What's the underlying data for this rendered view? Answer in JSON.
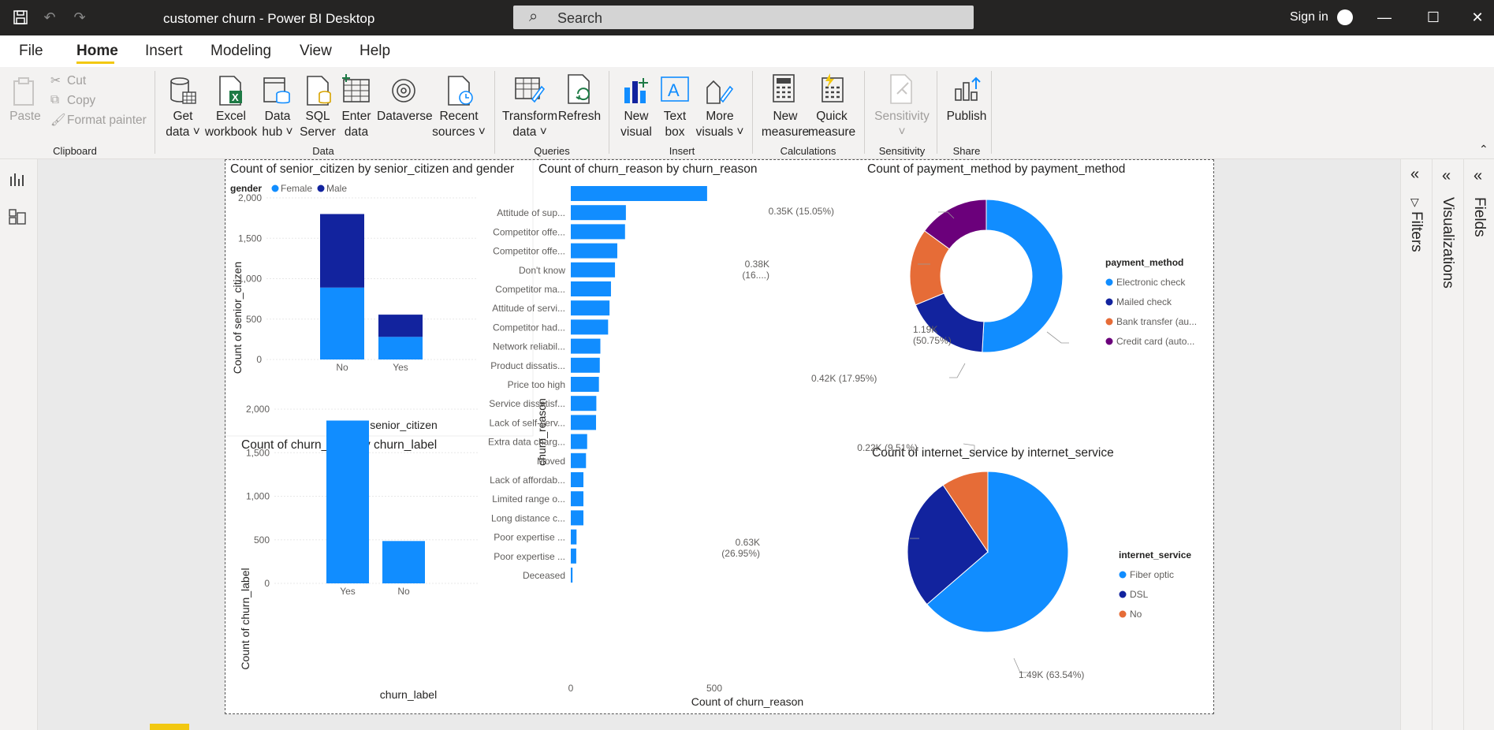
{
  "titlebar": {
    "title": "customer churn - Power BI Desktop",
    "search_label": "Search",
    "sign_in": "Sign in",
    "icons": [
      "save-icon",
      "undo-icon",
      "redo-icon",
      "search-icon",
      "minimize-icon",
      "maximize-icon",
      "close-icon"
    ]
  },
  "menu": {
    "items": [
      "File",
      "Home",
      "Insert",
      "Modeling",
      "View",
      "Help"
    ],
    "active": "Home"
  },
  "ribbon": {
    "clipboard": {
      "paste": "Paste",
      "cut": "Cut",
      "copy": "Copy",
      "format_painter": "Format painter",
      "group": "Clipboard"
    },
    "data": {
      "get_data_1": "Get",
      "get_data_2": "data",
      "excel_1": "Excel",
      "excel_2": "workbook",
      "hub_1": "Data",
      "hub_2": "hub",
      "sql_1": "SQL",
      "sql_2": "Server",
      "enter_1": "Enter",
      "enter_2": "data",
      "dataverse": "Dataverse",
      "recent_1": "Recent",
      "recent_2": "sources",
      "group": "Data"
    },
    "queries": {
      "transform_1": "Transform",
      "transform_2": "data",
      "refresh": "Refresh",
      "group": "Queries"
    },
    "insert": {
      "newvis_1": "New",
      "newvis_2": "visual",
      "textbox_1": "Text",
      "textbox_2": "box",
      "more_1": "More",
      "more_2": "visuals",
      "group": "Insert"
    },
    "calculations": {
      "newm_1": "New",
      "newm_2": "measure",
      "quick_1": "Quick",
      "quick_2": "measure",
      "group": "Calculations"
    },
    "sensitivity": {
      "label": "Sensitivity",
      "group": "Sensitivity"
    },
    "share": {
      "publish": "Publish",
      "group": "Share"
    }
  },
  "panes": {
    "filters": "Filters",
    "visualizations": "Visualizations",
    "fields": "Fields"
  },
  "colors": {
    "blue": "#118dff",
    "navy": "#12239e",
    "orange": "#e66c37",
    "purple": "#6b007b",
    "accent": "#f2c811"
  },
  "chart_data": [
    {
      "type": "bar",
      "title": "Count of senior_citizen by senior_citizen and gender",
      "legend_title": "gender",
      "stacked": true,
      "categories": [
        "No",
        "Yes"
      ],
      "series": [
        {
          "name": "Female",
          "values": [
            890,
            280
          ]
        },
        {
          "name": "Male",
          "values": [
            910,
            275
          ]
        }
      ],
      "xlabel": "senior_citizen",
      "ylabel": "Count of senior_citizen",
      "yticks": [
        "0",
        "500",
        "1,000",
        "1,500",
        "2,000"
      ],
      "ylim": [
        0,
        2000
      ]
    },
    {
      "type": "bar",
      "title": "Count of churn_label by churn_label",
      "categories": [
        "Yes",
        "No"
      ],
      "values": [
        1869,
        486
      ],
      "xlabel": "churn_label",
      "ylabel": "Count of churn_label",
      "yticks": [
        "0",
        "500",
        "1,000",
        "1,500",
        "2,000"
      ],
      "ylim": [
        0,
        2000
      ]
    },
    {
      "type": "bar",
      "orientation": "horizontal",
      "title": "Count of churn_reason by churn_reason",
      "categories": [
        "",
        "Attitude of sup...",
        "Competitor offe...",
        "Competitor offe...",
        "Don't know",
        "Competitor ma...",
        "Attitude of servi...",
        "Competitor had...",
        "Network reliabil...",
        "Product dissatis...",
        "Price too high",
        "Service dissatisf...",
        "Lack of self-serv...",
        "Extra data charg...",
        "Moved",
        "Lack of affordab...",
        "Limited range o...",
        "Long distance c...",
        "Poor expertise ...",
        "Poor expertise ...",
        "Deceased"
      ],
      "values": [
        475,
        192,
        189,
        162,
        154,
        140,
        135,
        130,
        103,
        101,
        98,
        89,
        88,
        57,
        53,
        44,
        44,
        44,
        20,
        19,
        6
      ],
      "xlabel": "Count of churn_reason",
      "ylabel": "churn_reason",
      "xticks": [
        "0",
        "500"
      ],
      "xlim": [
        0,
        500
      ]
    },
    {
      "type": "pie",
      "donut": true,
      "title": "Count of payment_method by payment_method",
      "legend_title": "payment_method",
      "slices": [
        {
          "name": "Electronic check",
          "value": 1190,
          "label_1": "1.19K",
          "label_2": "(50.75%)"
        },
        {
          "name": "Mailed check",
          "value": 420,
          "label_1": "0.42K (17.95%)",
          "label_2": ""
        },
        {
          "name": "Bank transfer (au...",
          "value": 380,
          "label_1": "0.38K",
          "label_2": "(16....)"
        },
        {
          "name": "Credit card (auto...",
          "value": 350,
          "label_1": "0.35K (15.05%)",
          "label_2": ""
        }
      ]
    },
    {
      "type": "pie",
      "title": "Count of internet_service by internet_service",
      "legend_title": "internet_service",
      "slices": [
        {
          "name": "Fiber optic",
          "value": 1490,
          "label_1": "1.49K (63.54%)",
          "label_2": ""
        },
        {
          "name": "DSL",
          "value": 630,
          "label_1": "0.63K",
          "label_2": "(26.95%)"
        },
        {
          "name": "No",
          "value": 220,
          "label_1": "0.22K (9.51%)",
          "label_2": ""
        }
      ]
    }
  ]
}
